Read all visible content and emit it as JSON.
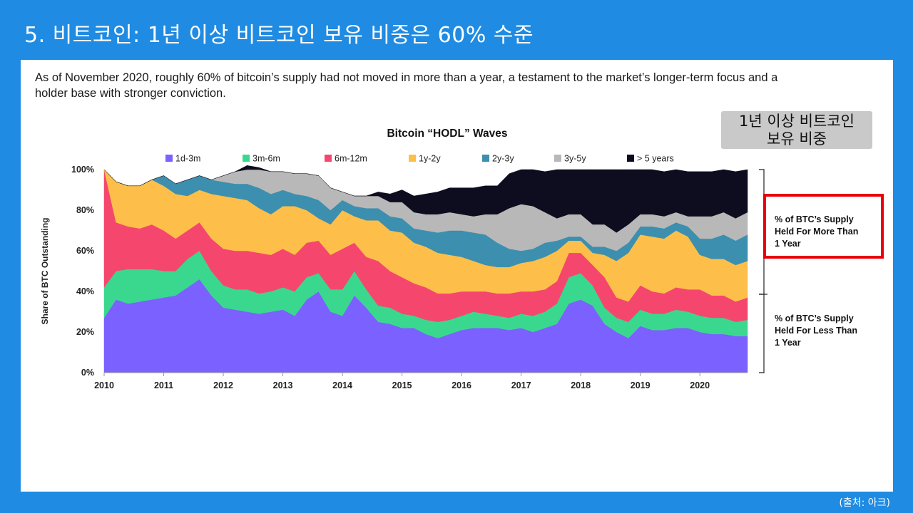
{
  "slide": {
    "title": "5. 비트코인: 1년 이상 비트코인 보유 비중은 60% 수준",
    "subtitle": "As of November 2020, roughly 60% of bitcoin’s supply had not moved in more than a year, a testament to the market’s longer-term focus and a holder base with stronger conviction.",
    "badge": "1년 이상 비트코인\n보유 비중",
    "source": "(출처: 아크)"
  },
  "colors": {
    "background": "#1f8be2",
    "highlight_box": "#e8000b"
  },
  "chart_data": {
    "type": "area",
    "stacked": true,
    "title": "Bitcoin “HODL” Waves",
    "ylabel": "Share of BTC Outstanding",
    "xlabel": "",
    "xlim": [
      2010,
      2020.8
    ],
    "ylim": [
      0,
      100
    ],
    "x_ticks": [
      "2010",
      "2011",
      "2012",
      "2013",
      "2014",
      "2015",
      "2016",
      "2017",
      "2018",
      "2019",
      "2020"
    ],
    "y_ticks": [
      "0%",
      "20%",
      "40%",
      "60%",
      "80%",
      "100%"
    ],
    "legend_position": "top",
    "x": [
      2010.0,
      2010.2,
      2010.4,
      2010.6,
      2010.8,
      2011.0,
      2011.2,
      2011.4,
      2011.6,
      2011.8,
      2012.0,
      2012.2,
      2012.4,
      2012.6,
      2012.8,
      2013.0,
      2013.2,
      2013.4,
      2013.6,
      2013.8,
      2014.0,
      2014.2,
      2014.4,
      2014.6,
      2014.8,
      2015.0,
      2015.2,
      2015.4,
      2015.6,
      2015.8,
      2016.0,
      2016.2,
      2016.4,
      2016.6,
      2016.8,
      2017.0,
      2017.2,
      2017.4,
      2017.6,
      2017.8,
      2018.0,
      2018.2,
      2018.4,
      2018.6,
      2018.8,
      2019.0,
      2019.2,
      2019.4,
      2019.6,
      2019.8,
      2020.0,
      2020.2,
      2020.4,
      2020.6,
      2020.8
    ],
    "series": [
      {
        "name": "1d-3m",
        "color": "#7b61ff",
        "values": [
          27,
          36,
          34,
          35,
          36,
          37,
          38,
          42,
          46,
          38,
          32,
          31,
          30,
          29,
          30,
          31,
          28,
          36,
          40,
          30,
          28,
          38,
          32,
          25,
          24,
          22,
          22,
          19,
          17,
          19,
          21,
          22,
          22,
          22,
          21,
          22,
          20,
          22,
          24,
          34,
          36,
          33,
          24,
          20,
          17,
          23,
          21,
          21,
          22,
          22,
          20,
          19,
          19,
          18,
          18
        ]
      },
      {
        "name": "3m-6m",
        "color": "#3ad88f",
        "values": [
          15,
          14,
          17,
          16,
          15,
          13,
          12,
          14,
          14,
          12,
          11,
          10,
          11,
          10,
          10,
          11,
          12,
          11,
          9,
          11,
          13,
          12,
          9,
          8,
          8,
          7,
          6,
          7,
          8,
          7,
          7,
          8,
          7,
          6,
          6,
          7,
          8,
          8,
          10,
          13,
          13,
          10,
          8,
          7,
          8,
          8,
          8,
          8,
          9,
          8,
          8,
          8,
          8,
          7,
          8
        ]
      },
      {
        "name": "6m-12m",
        "color": "#f5476d",
        "values": [
          58,
          24,
          21,
          20,
          22,
          20,
          16,
          14,
          14,
          16,
          18,
          19,
          19,
          20,
          18,
          19,
          18,
          17,
          16,
          17,
          20,
          14,
          16,
          22,
          18,
          18,
          16,
          16,
          14,
          13,
          12,
          10,
          11,
          11,
          12,
          11,
          12,
          11,
          11,
          12,
          10,
          10,
          15,
          10,
          10,
          12,
          11,
          10,
          11,
          11,
          13,
          11,
          11,
          10,
          11
        ]
      },
      {
        "name": "1y-2y",
        "color": "#fdbf4a",
        "values": [
          0,
          20,
          20,
          21,
          22,
          22,
          22,
          17,
          16,
          22,
          26,
          26,
          25,
          22,
          20,
          21,
          24,
          16,
          11,
          15,
          19,
          13,
          18,
          20,
          20,
          22,
          20,
          20,
          20,
          19,
          17,
          15,
          13,
          13,
          13,
          14,
          15,
          16,
          15,
          6,
          6,
          6,
          11,
          18,
          24,
          25,
          27,
          27,
          28,
          26,
          17,
          18,
          18,
          18,
          18
        ]
      },
      {
        "name": "2y-3y",
        "color": "#3c8fae",
        "values": [
          0,
          0,
          0,
          0,
          0,
          5,
          5,
          8,
          7,
          7,
          7,
          7,
          8,
          10,
          10,
          8,
          6,
          7,
          9,
          7,
          5,
          5,
          6,
          6,
          7,
          7,
          7,
          8,
          10,
          12,
          13,
          14,
          15,
          12,
          9,
          6,
          6,
          7,
          5,
          2,
          2,
          3,
          4,
          5,
          5,
          4,
          5,
          5,
          4,
          5,
          8,
          10,
          12,
          12,
          13
        ]
      },
      {
        "name": "3y-5y",
        "color": "#b8b8b8",
        "values": [
          0,
          0,
          0,
          0,
          0,
          0,
          0,
          0,
          0,
          0,
          3,
          6,
          9,
          10,
          11,
          9,
          10,
          11,
          12,
          11,
          4,
          5,
          6,
          6,
          7,
          8,
          8,
          8,
          9,
          9,
          8,
          8,
          10,
          14,
          20,
          23,
          21,
          15,
          11,
          11,
          11,
          11,
          11,
          9,
          9,
          6,
          6,
          6,
          5,
          5,
          11,
          11,
          11,
          11,
          11
        ]
      },
      {
        "name": "> 5 years",
        "color": "#0d0d1f",
        "values": [
          0,
          0,
          0,
          0,
          0,
          0,
          0,
          0,
          0,
          0,
          0,
          0,
          0,
          0,
          0,
          0,
          0,
          0,
          0,
          0,
          0,
          0,
          0,
          2,
          4,
          6,
          8,
          10,
          11,
          12,
          13,
          14,
          14,
          14,
          17,
          17,
          18,
          20,
          24,
          22,
          22,
          27,
          27,
          31,
          27,
          26,
          22,
          22,
          22,
          22,
          22,
          22,
          22,
          23,
          22
        ]
      }
    ],
    "annotations": {
      "more_than_1y": "% of BTC’s Supply\n Held For More Than\n1 Year",
      "less_than_1y": "% of BTC’s Supply\nHeld For Less Than\n1 Year"
    }
  }
}
